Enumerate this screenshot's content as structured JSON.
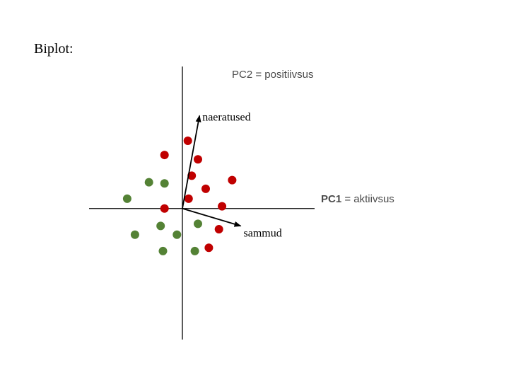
{
  "slide": {
    "title": "Biplot:"
  },
  "chart_data": {
    "type": "scatter",
    "title": "",
    "axis_labels": {
      "pc1": {
        "prefix": "PC1",
        "rest": " = aktiivsus"
      },
      "pc2": {
        "prefix": "PC2",
        "rest": " = positiivsus"
      }
    },
    "xlim": [
      -6,
      8.5
    ],
    "ylim": [
      -6,
      6.5
    ],
    "grid": false,
    "colors": {
      "group_a": "#c00000",
      "group_b": "#548235",
      "axis": "#000000",
      "vector": "#000000"
    },
    "series": [
      {
        "group": "group_a",
        "points": [
          {
            "x": 0.35,
            "y": 3.1
          },
          {
            "x": -1.15,
            "y": 2.45
          },
          {
            "x": 1.0,
            "y": 2.25
          },
          {
            "x": 0.6,
            "y": 1.5
          },
          {
            "x": 3.2,
            "y": 1.3
          },
          {
            "x": 1.5,
            "y": 0.9
          },
          {
            "x": 0.4,
            "y": 0.45
          },
          {
            "x": 2.55,
            "y": 0.1
          },
          {
            "x": -1.15,
            "y": 0.0
          },
          {
            "x": 2.35,
            "y": -0.95
          },
          {
            "x": 1.7,
            "y": -1.8
          }
        ]
      },
      {
        "group": "group_b",
        "points": [
          {
            "x": -2.15,
            "y": 1.2
          },
          {
            "x": -1.15,
            "y": 1.15
          },
          {
            "x": -3.55,
            "y": 0.45
          },
          {
            "x": 1.0,
            "y": -0.7
          },
          {
            "x": -1.4,
            "y": -0.8
          },
          {
            "x": -3.05,
            "y": -1.2
          },
          {
            "x": -0.35,
            "y": -1.2
          },
          {
            "x": -1.25,
            "y": -1.95
          },
          {
            "x": 0.8,
            "y": -1.95
          }
        ]
      }
    ],
    "vectors": [
      {
        "label": "naeratused",
        "x": 1.1,
        "y": 4.25
      },
      {
        "label": "sammud",
        "x": 3.75,
        "y": -0.8
      }
    ]
  }
}
